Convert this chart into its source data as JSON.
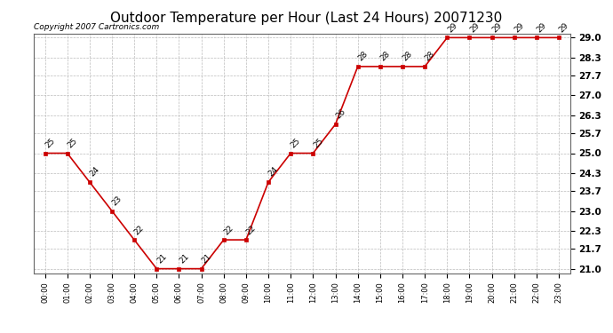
{
  "title": "Outdoor Temperature per Hour (Last 24 Hours) 20071230",
  "copyright_text": "Copyright 2007 Cartronics.com",
  "hours": [
    "00:00",
    "01:00",
    "02:00",
    "03:00",
    "04:00",
    "05:00",
    "06:00",
    "07:00",
    "08:00",
    "09:00",
    "10:00",
    "11:00",
    "12:00",
    "13:00",
    "14:00",
    "15:00",
    "16:00",
    "17:00",
    "18:00",
    "19:00",
    "20:00",
    "21:00",
    "22:00",
    "23:00"
  ],
  "temperatures": [
    25,
    25,
    24,
    23,
    22,
    21,
    21,
    21,
    22,
    22,
    24,
    25,
    25,
    26,
    28,
    28,
    28,
    28,
    29,
    29,
    29,
    29,
    29,
    29
  ],
  "line_color": "#cc0000",
  "marker_color": "#cc0000",
  "background_color": "#ffffff",
  "grid_color": "#bbbbbb",
  "ylim_min": 21.0,
  "ylim_max": 29.0,
  "yticks": [
    21.0,
    21.7,
    22.3,
    23.0,
    23.7,
    24.3,
    25.0,
    25.7,
    26.3,
    27.0,
    27.7,
    28.3,
    29.0
  ],
  "title_fontsize": 11,
  "annotation_fontsize": 6.5,
  "copyright_fontsize": 6.5,
  "tick_fontsize": 7.5,
  "xtick_fontsize": 6
}
